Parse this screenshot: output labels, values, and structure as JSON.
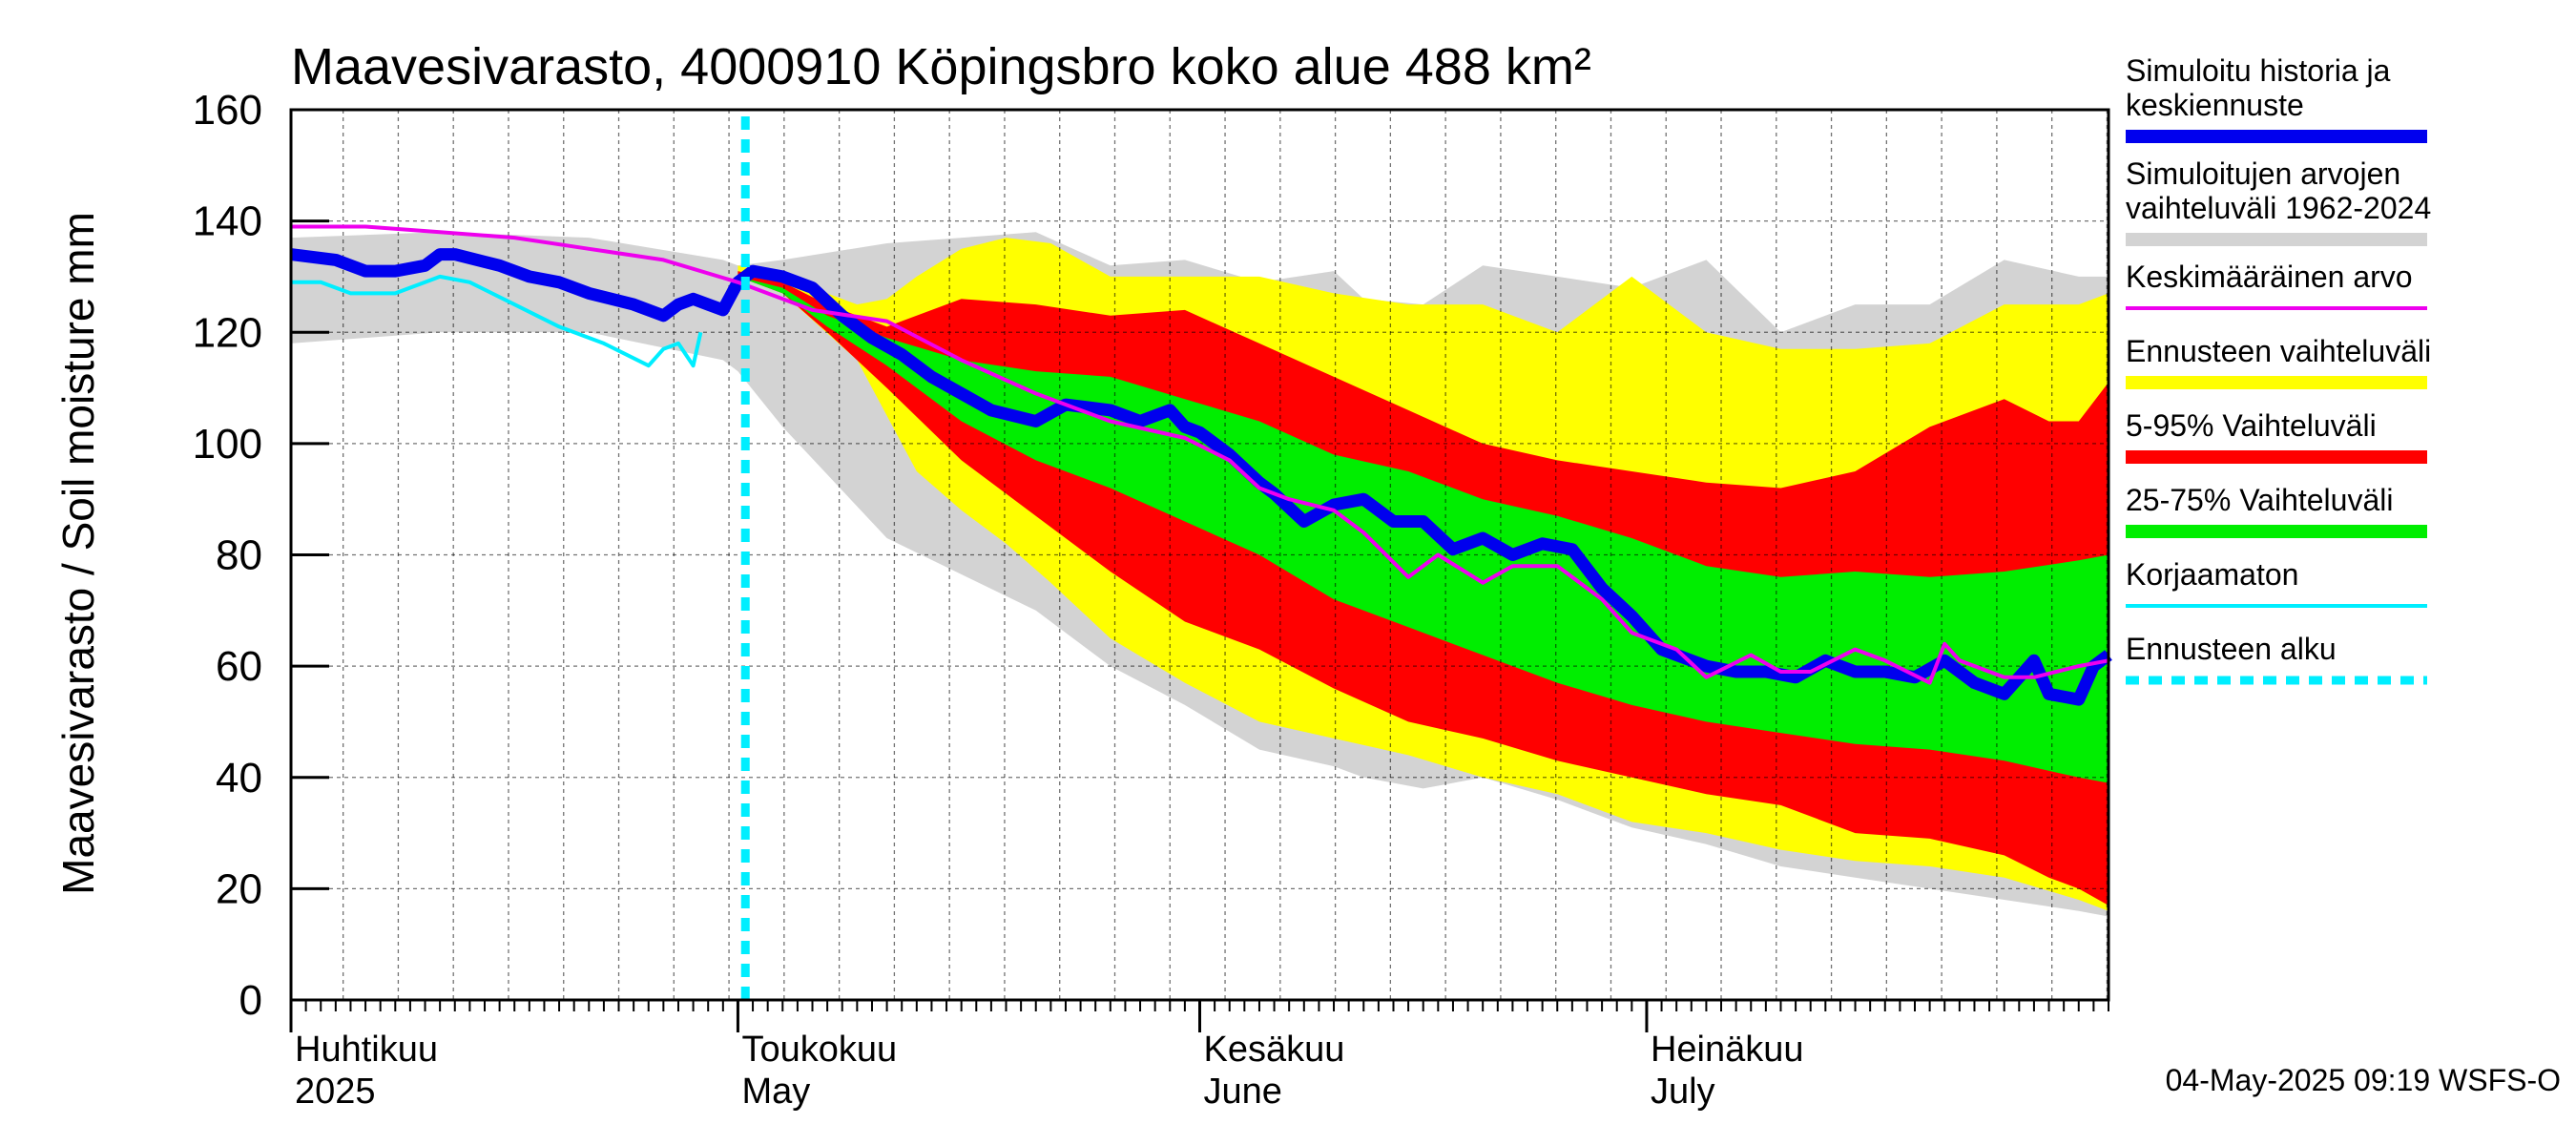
{
  "chart_data": {
    "type": "area",
    "title": "Maavesivarasto, 4000910 Köpingsbro koko alue 488 km²",
    "ylabel": "Maavesivarasto / Soil moisture   mm",
    "ylim": [
      0,
      160
    ],
    "yticks": [
      0,
      20,
      40,
      60,
      80,
      100,
      120,
      140,
      160
    ],
    "xlim_days": [
      0,
      122
    ],
    "month_labels": [
      {
        "day": 0,
        "line1": "Huhtikuu",
        "line2": "2025"
      },
      {
        "day": 30,
        "line1": "Toukokuu",
        "line2": "May"
      },
      {
        "day": 61,
        "line1": "Kesäkuu",
        "line2": "June"
      },
      {
        "day": 91,
        "line1": "Heinäkuu",
        "line2": "July"
      }
    ],
    "forecast_start_day": 30.5,
    "series": [
      {
        "name": "Simuloitujen arvojen vaihteluväli 1962-2024",
        "color": "#d3d3d3",
        "kind": "band",
        "x": [
          0,
          10,
          20,
          29,
          30,
          33,
          40,
          50,
          55,
          60,
          65,
          70,
          72,
          76,
          80,
          85,
          90,
          95,
          100,
          105,
          110,
          115,
          120,
          122
        ],
        "upper": [
          137,
          138,
          137,
          133,
          132,
          133,
          136,
          138,
          132,
          133,
          129,
          131,
          126,
          125,
          132,
          130,
          128,
          133,
          120,
          125,
          125,
          133,
          130,
          130
        ],
        "lower": [
          118,
          120,
          120,
          115,
          113,
          103,
          83,
          70,
          60,
          53,
          45,
          42,
          40,
          38,
          40,
          36,
          31,
          28,
          24,
          22,
          20,
          18,
          16,
          15
        ]
      },
      {
        "name": "Ennusteen vaihteluväli",
        "color": "#ffff00",
        "kind": "band",
        "x": [
          30,
          33,
          38,
          40,
          42,
          45,
          48,
          51,
          55,
          60,
          65,
          70,
          75,
          80,
          85,
          90,
          95,
          100,
          105,
          110,
          115,
          120,
          122
        ],
        "upper": [
          132,
          130,
          125,
          126,
          130,
          135,
          137,
          136,
          130,
          130,
          130,
          127,
          125,
          125,
          120,
          130,
          120,
          117,
          117,
          118,
          125,
          125,
          127
        ],
        "lower": [
          130,
          127,
          115,
          105,
          95,
          88,
          82,
          75,
          65,
          57,
          50,
          47,
          44,
          40,
          37,
          32,
          30,
          27,
          25,
          24,
          22,
          18,
          16
        ]
      },
      {
        "name": "5-95% Vaihteluväli",
        "color": "#ff0000",
        "kind": "band",
        "x": [
          30,
          33,
          36,
          40,
          45,
          50,
          55,
          60,
          65,
          70,
          75,
          80,
          85,
          90,
          95,
          100,
          105,
          110,
          115,
          118,
          120,
          122
        ],
        "upper": [
          131,
          129,
          125,
          121,
          126,
          125,
          123,
          124,
          118,
          112,
          106,
          100,
          97,
          95,
          93,
          92,
          95,
          103,
          108,
          104,
          104,
          111
        ],
        "lower": [
          130,
          127,
          120,
          110,
          97,
          87,
          77,
          68,
          63,
          56,
          50,
          47,
          43,
          40,
          37,
          35,
          30,
          29,
          26,
          22,
          20,
          17
        ]
      },
      {
        "name": "25-75% Vaihteluväli",
        "color": "#00ee00",
        "kind": "band",
        "x": [
          30,
          33,
          36,
          40,
          45,
          50,
          55,
          60,
          65,
          70,
          75,
          80,
          85,
          90,
          95,
          100,
          105,
          110,
          115,
          120,
          122
        ],
        "upper": [
          130,
          128,
          123,
          119,
          115,
          113,
          112,
          108,
          104,
          98,
          95,
          90,
          87,
          83,
          78,
          76,
          77,
          76,
          77,
          79,
          80
        ],
        "lower": [
          130,
          127,
          121,
          114,
          104,
          97,
          92,
          86,
          80,
          72,
          67,
          62,
          57,
          53,
          50,
          48,
          46,
          45,
          43,
          40,
          39
        ]
      },
      {
        "name": "Simuloitu historia ja keskiennuste",
        "color": "#0000ee",
        "kind": "line",
        "x": [
          0,
          3,
          5,
          7,
          9,
          10,
          11,
          14,
          16,
          18,
          20,
          23,
          25,
          26,
          27,
          28,
          29,
          30,
          31,
          33,
          35,
          37,
          39,
          41,
          43,
          45,
          47,
          50,
          52,
          55,
          57,
          59,
          60,
          61,
          63,
          65,
          66,
          68,
          70,
          72,
          74,
          76,
          78,
          80,
          82,
          84,
          86,
          88,
          90,
          92,
          95,
          97,
          99,
          101,
          103,
          105,
          107,
          109,
          111,
          113,
          115,
          117,
          118,
          120,
          121,
          122
        ],
        "y": [
          134,
          133,
          131,
          131,
          132,
          134,
          134,
          132,
          130,
          129,
          127,
          125,
          123,
          125,
          126,
          125,
          124,
          129,
          131,
          130,
          128,
          123,
          119,
          116,
          112,
          109,
          106,
          104,
          107,
          106,
          104,
          106,
          103,
          102,
          98,
          93,
          91,
          86,
          89,
          90,
          86,
          86,
          81,
          83,
          80,
          82,
          81,
          74,
          69,
          63,
          60,
          59,
          59,
          58,
          61,
          59,
          59,
          58,
          61,
          57,
          55,
          61,
          55,
          54,
          60,
          62
        ]
      },
      {
        "name": "Keskimääräinen arvo",
        "color": "#ee00ee",
        "kind": "line",
        "x": [
          0,
          5,
          10,
          15,
          20,
          25,
          30,
          35,
          40,
          45,
          50,
          55,
          60,
          63,
          65,
          67,
          70,
          72,
          75,
          77,
          80,
          82,
          85,
          88,
          90,
          93,
          95,
          98,
          100,
          102,
          105,
          107,
          110,
          111,
          112,
          115,
          117,
          120,
          122
        ],
        "y": [
          139,
          139,
          138,
          137,
          135,
          133,
          129,
          124,
          122,
          115,
          109,
          104,
          101,
          97,
          92,
          90,
          88,
          84,
          76,
          80,
          75,
          78,
          78,
          72,
          66,
          63,
          58,
          62,
          59,
          59,
          63,
          61,
          57,
          64,
          61,
          58,
          58,
          60,
          61
        ]
      },
      {
        "name": "Korjaamaton",
        "color": "#00eeff",
        "kind": "line",
        "x": [
          0,
          2,
          4,
          7,
          9,
          10,
          12,
          15,
          18,
          21,
          24,
          25,
          26,
          27,
          27.5
        ],
        "y": [
          129,
          129,
          127,
          127,
          129,
          130,
          129,
          125,
          121,
          118,
          114,
          117,
          118,
          114,
          120
        ]
      },
      {
        "name": "Ennusteen alku",
        "color": "#00eeff",
        "kind": "vline"
      }
    ]
  },
  "legend": [
    {
      "lines": [
        "Simuloitu historia ja",
        "keskiennuste"
      ],
      "color": "#0000ee",
      "style": "thick"
    },
    {
      "lines": [
        "Simuloitujen arvojen",
        "vaihteluväli 1962-2024"
      ],
      "color": "#d3d3d3",
      "style": "thick"
    },
    {
      "lines": [
        "Keskimääräinen arvo"
      ],
      "color": "#ee00ee",
      "style": "thin"
    },
    {
      "lines": [
        "Ennusteen vaihteluväli"
      ],
      "color": "#ffff00",
      "style": "thick"
    },
    {
      "lines": [
        "5-95% Vaihteluväli"
      ],
      "color": "#ff0000",
      "style": "thick"
    },
    {
      "lines": [
        "25-75% Vaihteluväli"
      ],
      "color": "#00ee00",
      "style": "thick"
    },
    {
      "lines": [
        "Korjaamaton"
      ],
      "color": "#00eeff",
      "style": "thin"
    },
    {
      "lines": [
        "Ennusteen alku"
      ],
      "color": "#00eeff",
      "style": "dashed"
    }
  ],
  "footer": "04-May-2025 09:19 WSFS-O"
}
